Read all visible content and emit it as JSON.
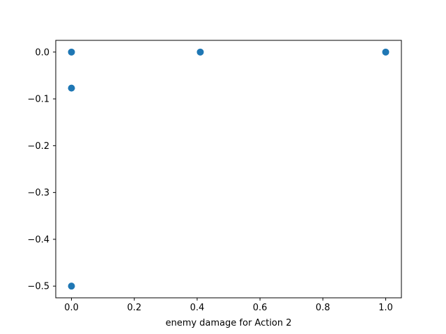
{
  "chart_data": {
    "type": "scatter",
    "title": "",
    "xlabel": "enemy damage for Action 2",
    "ylabel": "",
    "xlim": [
      -0.05,
      1.05
    ],
    "ylim": [
      -0.525,
      0.025
    ],
    "x_ticks": [
      0.0,
      0.2,
      0.4,
      0.6,
      0.8,
      1.0
    ],
    "x_tick_labels": [
      "0.0",
      "0.2",
      "0.4",
      "0.6",
      "0.8",
      "1.0"
    ],
    "y_ticks": [
      0.0,
      -0.1,
      -0.2,
      -0.3,
      -0.4,
      -0.5
    ],
    "y_tick_labels": [
      "0.0",
      "−0.1",
      "−0.2",
      "−0.3",
      "−0.4",
      "−0.5"
    ],
    "grid": false,
    "marker_color": "#1f77b4",
    "points": [
      {
        "x": 0.0,
        "y": 0.0
      },
      {
        "x": 0.0,
        "y": -0.077
      },
      {
        "x": 0.0,
        "y": -0.5
      },
      {
        "x": 0.41,
        "y": 0.0
      },
      {
        "x": 1.0,
        "y": 0.0
      }
    ]
  }
}
